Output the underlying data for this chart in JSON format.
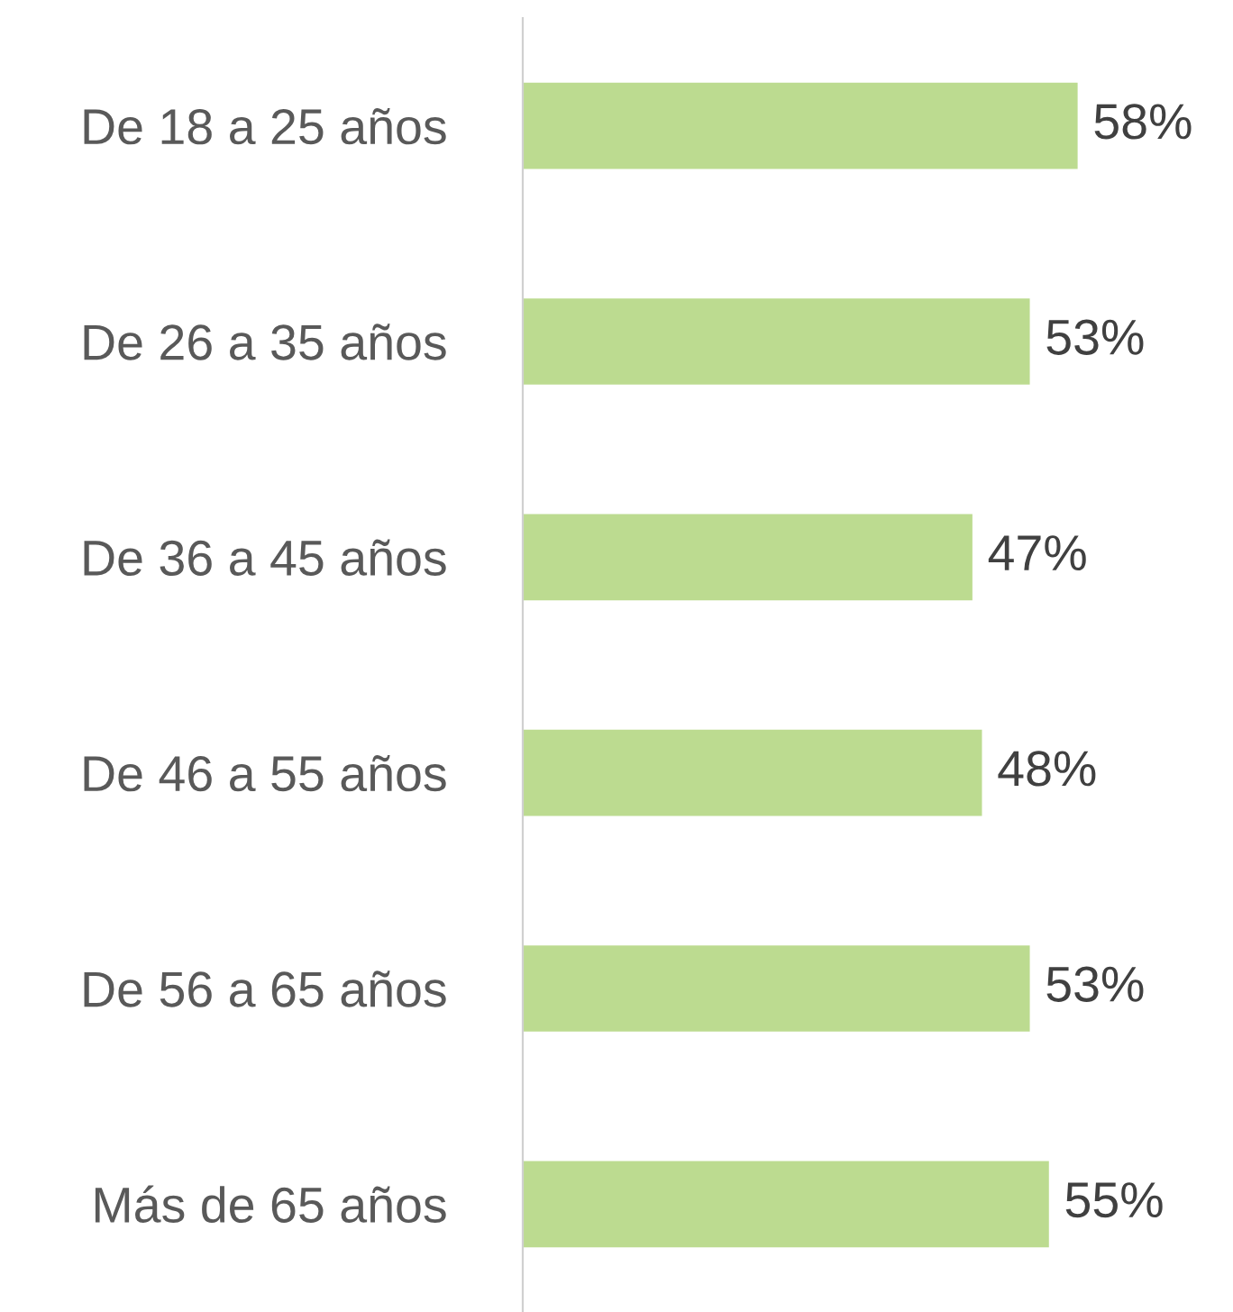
{
  "chart_data": {
    "type": "bar",
    "orientation": "horizontal",
    "categories": [
      "De 18 a 25 años",
      "De 26 a 35 años",
      "De 36 a 45 años",
      "De 46 a 55 años",
      "De 56 a 65 años",
      "Más de 65 años"
    ],
    "values": [
      58,
      53,
      47,
      48,
      53,
      55
    ],
    "value_labels": [
      "58%",
      "53%",
      "47%",
      "48%",
      "53%",
      "55%"
    ],
    "color": "#bcdb90",
    "grid": false,
    "legend": false
  }
}
